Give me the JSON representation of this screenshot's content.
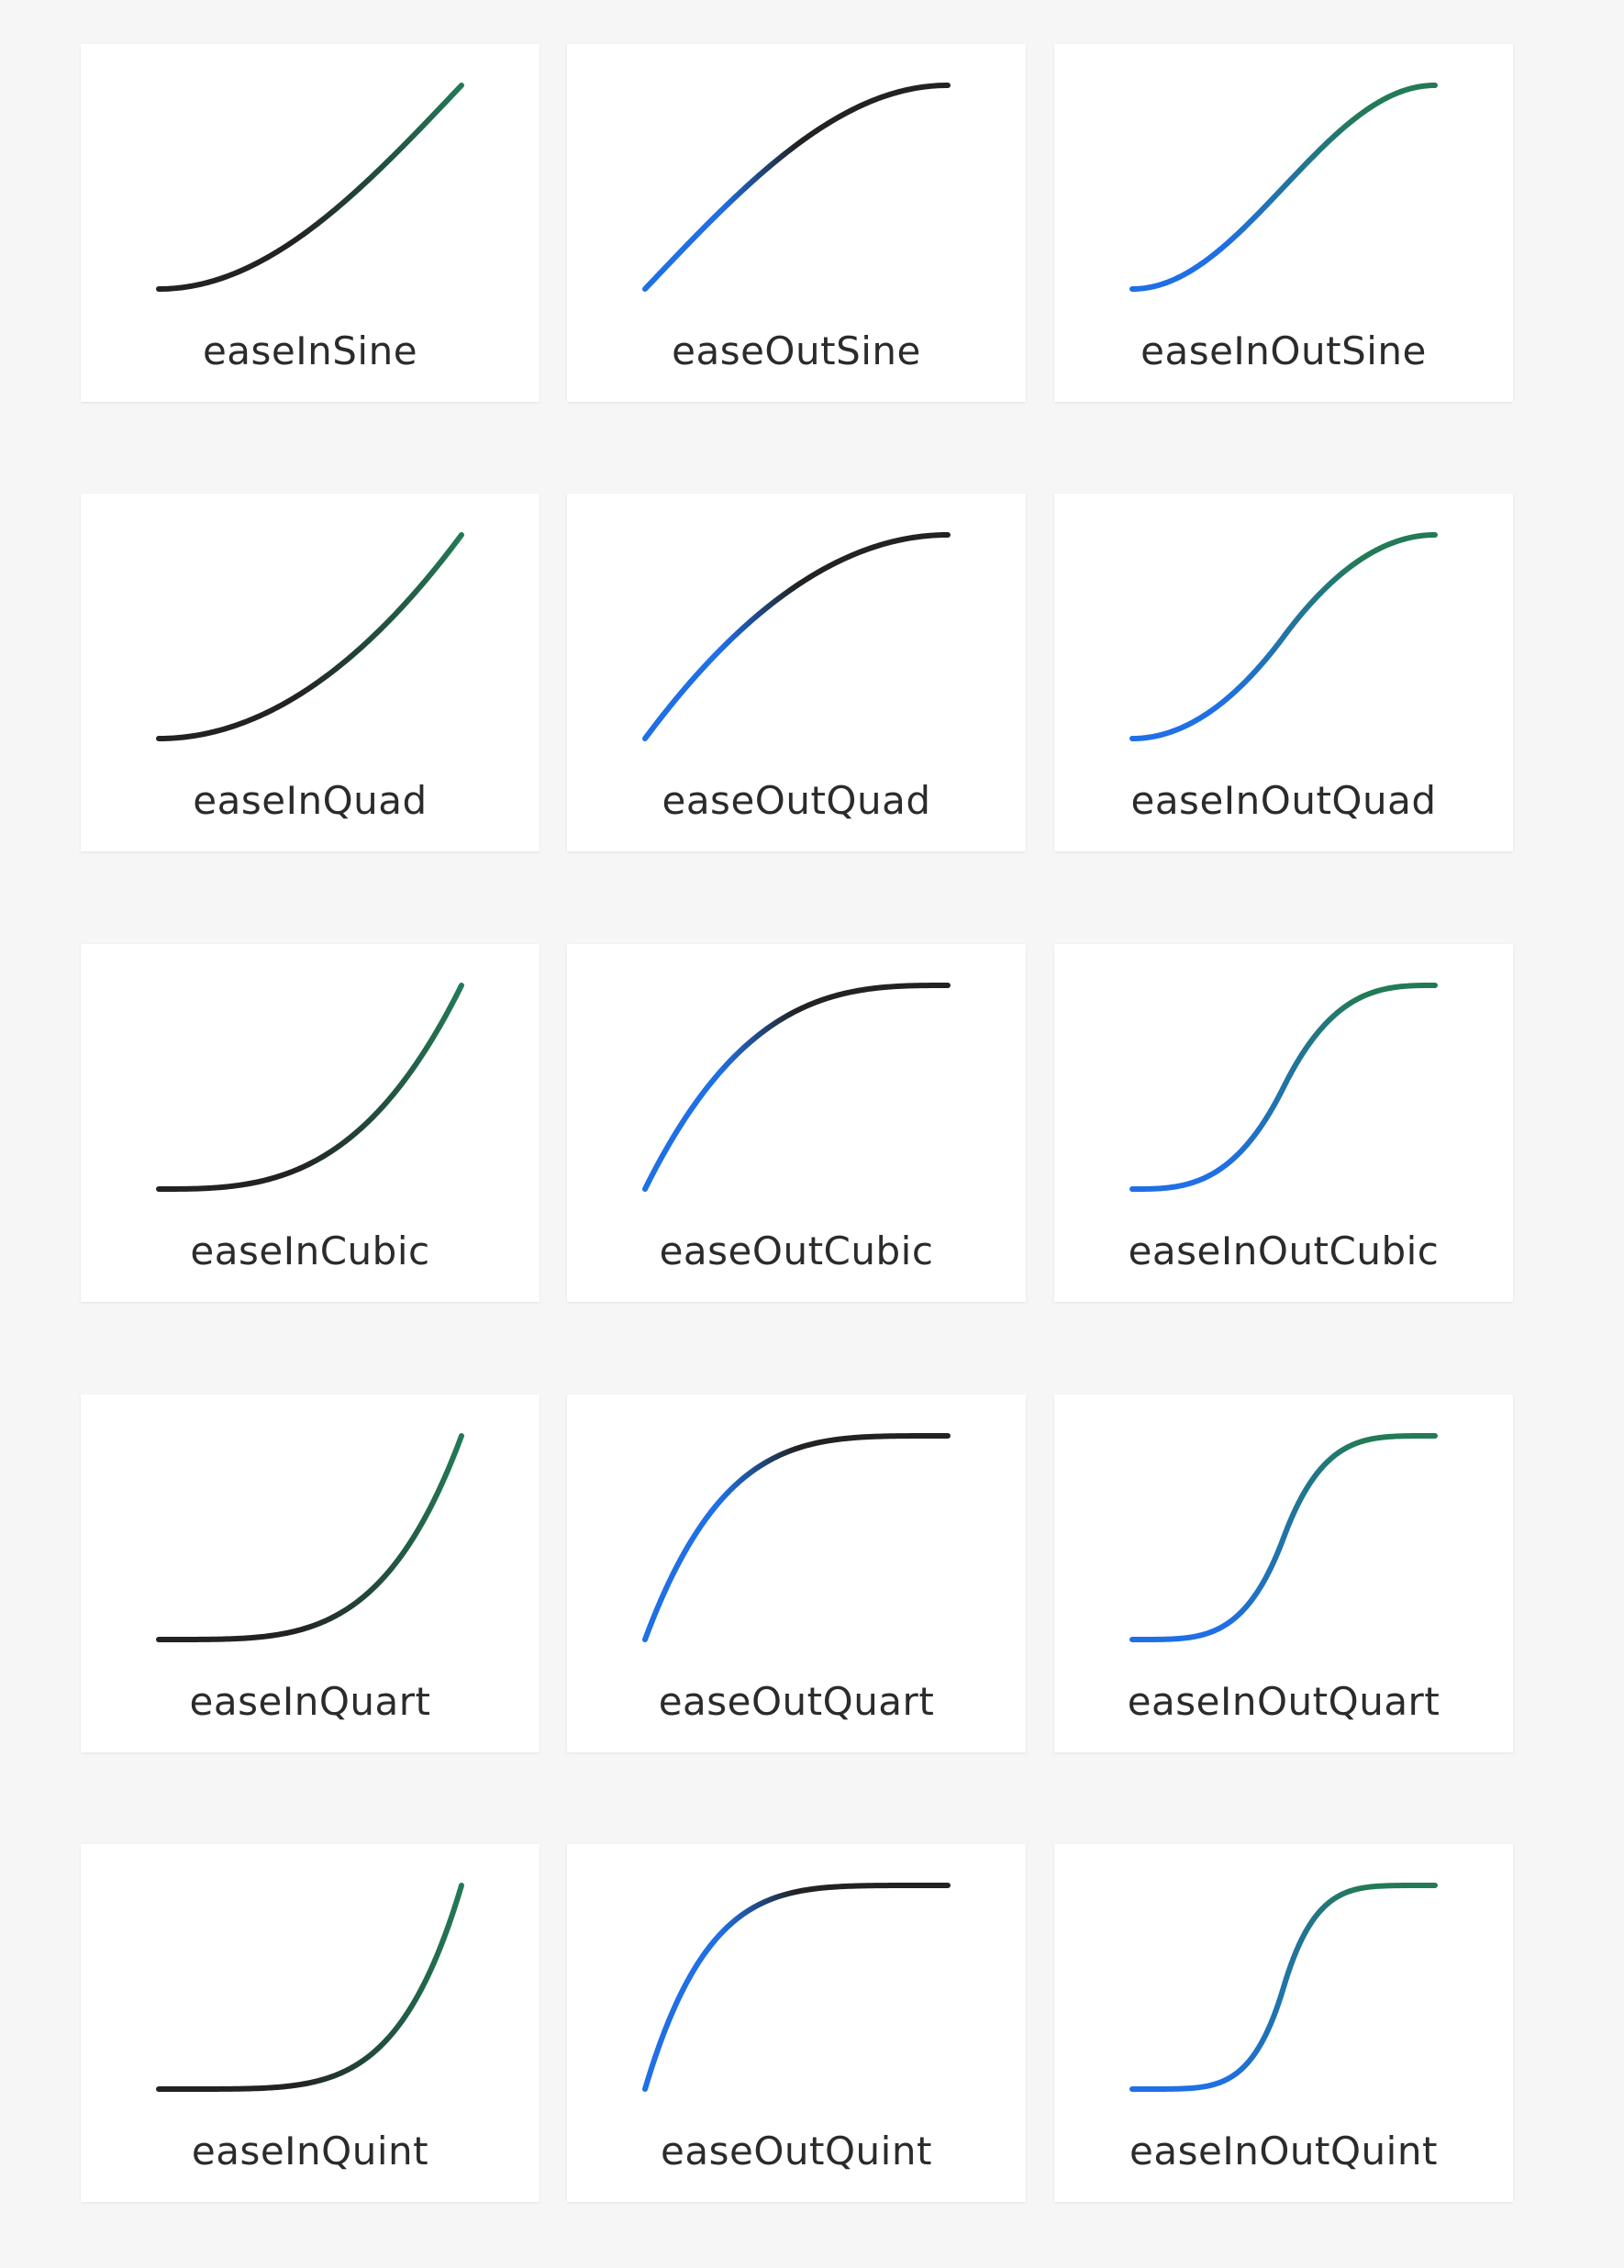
{
  "cards": [
    {
      "label": "easeInSine",
      "fn": "easeInSine"
    },
    {
      "label": "easeOutSine",
      "fn": "easeOutSine"
    },
    {
      "label": "easeInOutSine",
      "fn": "easeInOutSine"
    },
    {
      "label": "easeInQuad",
      "fn": "easeInQuad"
    },
    {
      "label": "easeOutQuad",
      "fn": "easeOutQuad"
    },
    {
      "label": "easeInOutQuad",
      "fn": "easeInOutQuad"
    },
    {
      "label": "easeInCubic",
      "fn": "easeInCubic"
    },
    {
      "label": "easeOutCubic",
      "fn": "easeOutCubic"
    },
    {
      "label": "easeInOutCubic",
      "fn": "easeInOutCubic"
    },
    {
      "label": "easeInQuart",
      "fn": "easeInQuart"
    },
    {
      "label": "easeOutQuart",
      "fn": "easeOutQuart"
    },
    {
      "label": "easeInOutQuart",
      "fn": "easeInOutQuart"
    },
    {
      "label": "easeInQuint",
      "fn": "easeInQuint"
    },
    {
      "label": "easeOutQuint",
      "fn": "easeOutQuint"
    },
    {
      "label": "easeInOutQuint",
      "fn": "easeInOutQuint"
    }
  ],
  "colors": {
    "page_background": "#f6f6f6",
    "card_background": "#ffffff",
    "label_text": "#2b2b2b",
    "curve_dark": "#222222",
    "curve_green": "#237a57",
    "curve_blue": "#1f6fe5"
  }
}
